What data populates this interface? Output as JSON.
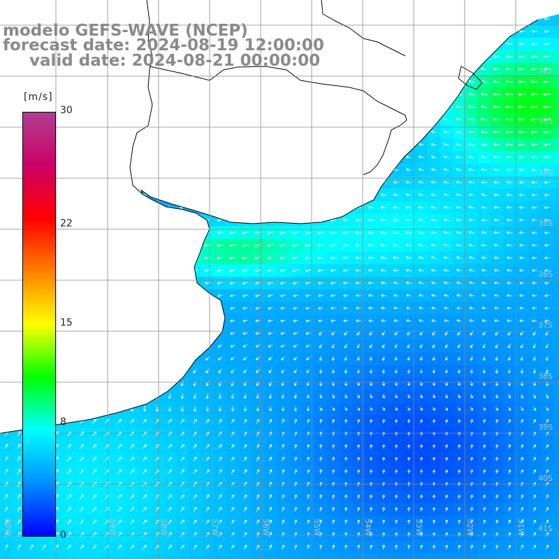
{
  "title": {
    "line1": "modelo GEFS-WAVE (NCEP)",
    "line2": "forecast date: 2024-08-19 12:00:00",
    "line3": "valid date: 2024-08-21 00:00:00"
  },
  "colorbar": {
    "unit": "[m/s]",
    "min": 0,
    "max": 30,
    "ticks": [
      {
        "label": "30",
        "value": 30
      },
      {
        "label": "22",
        "value": 22
      },
      {
        "label": "15",
        "value": 15
      },
      {
        "label": "8",
        "value": 8
      },
      {
        "label": "0",
        "value": 0
      }
    ],
    "stops": [
      "#0000ff",
      "#0090ff",
      "#00ffff",
      "#00ff00",
      "#ffff00",
      "#ff8000",
      "#ff0000",
      "#cc0066",
      "#b04090"
    ]
  },
  "lat_labels": [
    "32S",
    "33S",
    "34S",
    "35S",
    "36S",
    "37S",
    "38S",
    "39S",
    "40S",
    "41S"
  ],
  "lon_labels": [
    "60W",
    "59W",
    "58W",
    "57W",
    "56W",
    "55W",
    "54W",
    "53W",
    "52W",
    "51W"
  ],
  "colors": {
    "background": "#ffffff",
    "grid": "#888888",
    "coast": "#000000",
    "arrow": "#ffffff",
    "title": "#8a8a8a"
  },
  "map": {
    "field": "wind speed",
    "vector_color": "white"
  }
}
